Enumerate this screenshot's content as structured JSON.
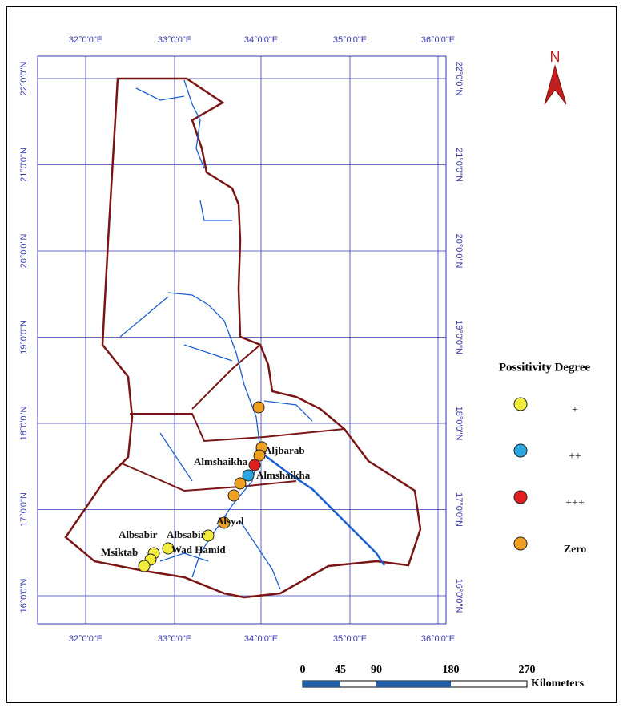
{
  "north": "N",
  "grid": {
    "x_labels": [
      "32°0'0\"E",
      "33°0'0\"E",
      "34°0'0\"E",
      "35°0'0\"E",
      "36°0'0\"E"
    ],
    "y_labels": [
      "22°0'0\"N",
      "21°0'0\"N",
      "20°0'0\"N",
      "19°0'0\"N",
      "18°0'0\"N",
      "17°0'0\"N",
      "16°0'0\"N"
    ]
  },
  "places": [
    "Aljbarab",
    "Almshaikha",
    "Almshaikha",
    "Alsyal",
    "Albsabir",
    "Albsabir",
    "Wad Hamid",
    "Msiktab"
  ],
  "legend": {
    "title": "Possitivity Degree",
    "items": [
      {
        "label": "+",
        "color": "#f4ec3c"
      },
      {
        "label": "++",
        "color": "#2aa7e0"
      },
      {
        "label": "+++",
        "color": "#e02020"
      },
      {
        "label": "Zero",
        "color": "#f0a020"
      }
    ]
  },
  "scale": {
    "ticks": [
      "0",
      "45",
      "90",
      "180",
      "270"
    ],
    "unit": "Kilometers"
  }
}
